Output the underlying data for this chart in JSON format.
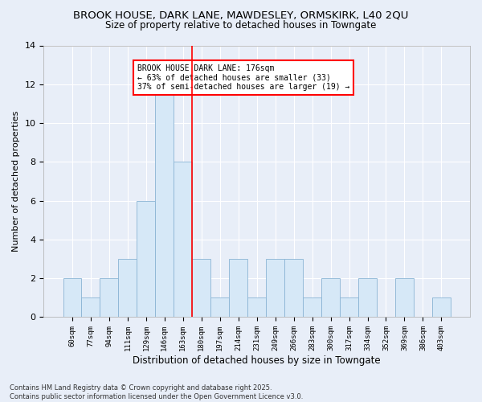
{
  "title_line1": "BROOK HOUSE, DARK LANE, MAWDESLEY, ORMSKIRK, L40 2QU",
  "title_line2": "Size of property relative to detached houses in Towngate",
  "xlabel": "Distribution of detached houses by size in Towngate",
  "ylabel": "Number of detached properties",
  "categories": [
    "60sqm",
    "77sqm",
    "94sqm",
    "111sqm",
    "129sqm",
    "146sqm",
    "163sqm",
    "180sqm",
    "197sqm",
    "214sqm",
    "231sqm",
    "249sqm",
    "266sqm",
    "283sqm",
    "300sqm",
    "317sqm",
    "334sqm",
    "352sqm",
    "369sqm",
    "386sqm",
    "403sqm"
  ],
  "values": [
    2,
    1,
    2,
    3,
    6,
    12,
    8,
    3,
    1,
    3,
    1,
    3,
    3,
    1,
    2,
    1,
    2,
    0,
    2,
    0,
    1
  ],
  "bar_color": "#d6e8f7",
  "bar_edge_color": "#8ab4d4",
  "vline_x": 6.5,
  "vline_color": "red",
  "annotation_text": "BROOK HOUSE DARK LANE: 176sqm\n← 63% of detached houses are smaller (33)\n37% of semi-detached houses are larger (19) →",
  "annotation_box_color": "white",
  "annotation_box_edge": "red",
  "ylim": [
    0,
    14
  ],
  "yticks": [
    0,
    2,
    4,
    6,
    8,
    10,
    12,
    14
  ],
  "background_color": "#e8eef8",
  "grid_color": "white",
  "footnote": "Contains HM Land Registry data © Crown copyright and database right 2025.\nContains public sector information licensed under the Open Government Licence v3.0."
}
